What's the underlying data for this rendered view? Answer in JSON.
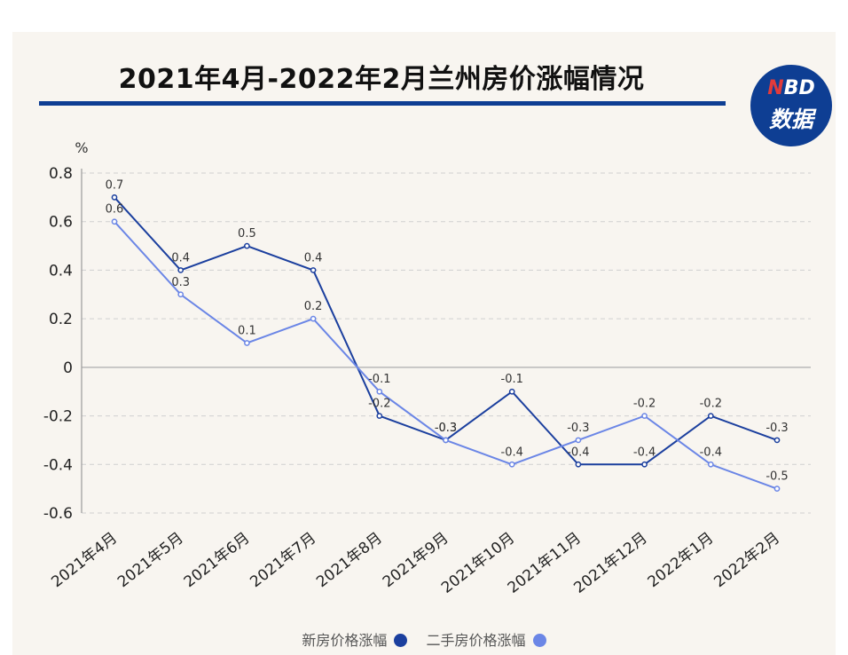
{
  "title": "2021年4月-2022年2月兰州房价涨幅情况",
  "logo": {
    "n": "N",
    "bd": "BD",
    "word": "数据"
  },
  "chart_data": {
    "type": "line",
    "categories": [
      "2021年4月",
      "2021年5月",
      "2021年6月",
      "2021年7月",
      "2021年8月",
      "2021年9月",
      "2021年10月",
      "2021年11月",
      "2021年12月",
      "2022年1月",
      "2022年2月"
    ],
    "series": [
      {
        "name": "新房价格涨幅",
        "color": "#1b3f9e",
        "values": [
          0.7,
          0.4,
          0.5,
          0.4,
          -0.2,
          -0.3,
          -0.1,
          -0.4,
          -0.4,
          -0.2,
          -0.3
        ]
      },
      {
        "name": "二手房价格涨幅",
        "color": "#6b86e6",
        "values": [
          0.6,
          0.3,
          0.1,
          0.2,
          -0.1,
          -0.3,
          -0.4,
          -0.3,
          -0.2,
          -0.4,
          -0.5
        ]
      }
    ],
    "ylabel": "%",
    "ylim": [
      -0.6,
      0.8
    ],
    "yticks": [
      0.8,
      0.6,
      0.4,
      0.2,
      0,
      -0.2,
      -0.4,
      -0.6
    ],
    "ytick_labels": [
      "0.8",
      "0.6",
      "0.4",
      "0.2",
      "0",
      "-0.2",
      "-0.4",
      "-0.6"
    ],
    "grid": true,
    "legend_position": "bottom-center"
  }
}
